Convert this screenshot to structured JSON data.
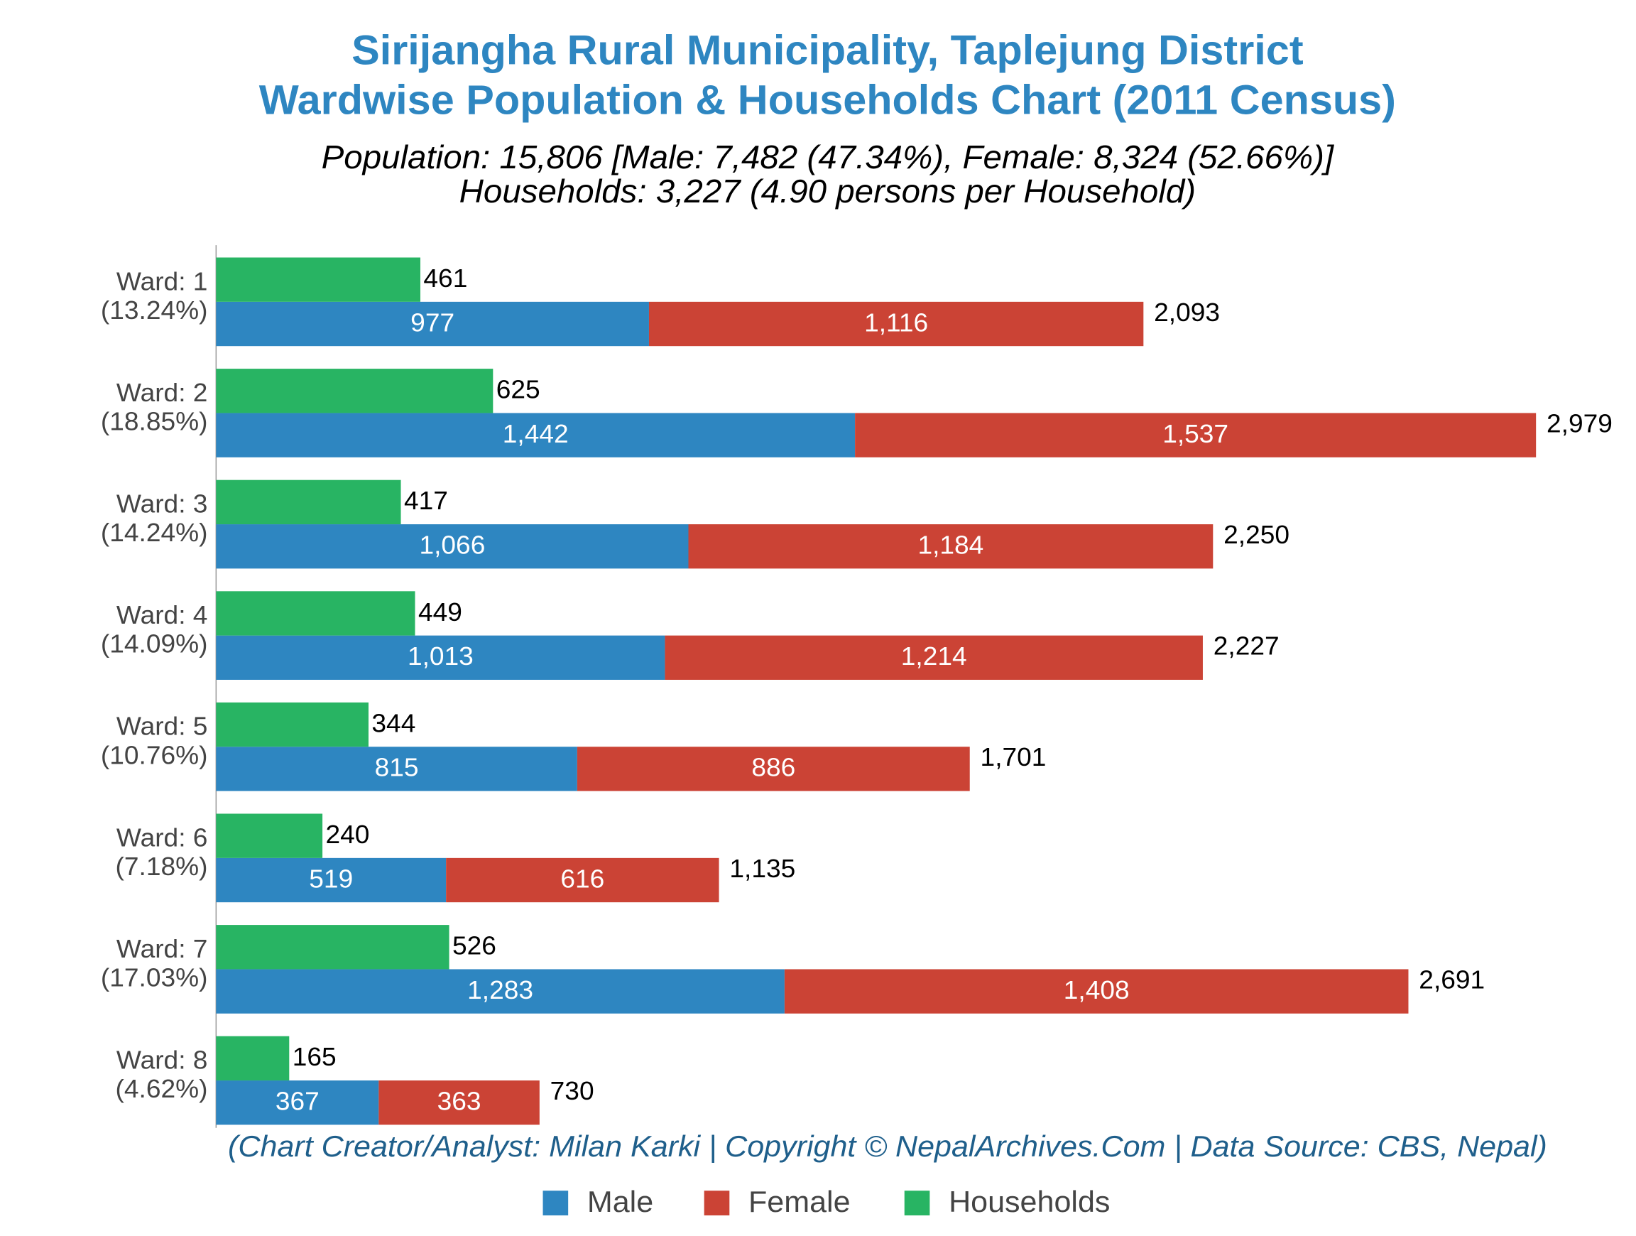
{
  "chart_data": {
    "type": "bar",
    "title": [
      "Sirijangha Rural Municipality, Taplejung District",
      "Wardwise Population & Households Chart (2011 Census)"
    ],
    "subtitle": [
      "Population: 15,806 [Male: 7,482 (47.34%), Female: 8,324 (52.66%)]",
      "Households: 3,227 (4.90 persons per Household)"
    ],
    "footer": "(Chart Creator/Analyst: Milan Karki | Copyright © NepalArchives.Com | Data Source: CBS, Nepal)",
    "categories": [
      "Ward: 1",
      "Ward: 2",
      "Ward: 3",
      "Ward: 4",
      "Ward: 5",
      "Ward: 6",
      "Ward: 7",
      "Ward: 8"
    ],
    "category_notes": [
      "(13.24%)",
      "(18.85%)",
      "(14.24%)",
      "(14.09%)",
      "(10.76%)",
      "(7.18%)",
      "(17.03%)",
      "(4.62%)"
    ],
    "series": [
      {
        "name": "Male",
        "color": "#2e86c1",
        "stack": "population",
        "values": [
          977,
          1442,
          1066,
          1013,
          815,
          519,
          1283,
          367
        ],
        "value_labels": [
          "977",
          "1,442",
          "1,066",
          "1,013",
          "815",
          "519",
          "1,283",
          "367"
        ]
      },
      {
        "name": "Female",
        "color": "#cb4335",
        "stack": "population",
        "values": [
          1116,
          1537,
          1184,
          1214,
          886,
          616,
          1408,
          363
        ],
        "value_labels": [
          "1,116",
          "1,537",
          "1,184",
          "1,214",
          "886",
          "616",
          "1,408",
          "363"
        ]
      },
      {
        "name": "Households",
        "color": "#28b463",
        "stack": "households",
        "values": [
          461,
          625,
          417,
          449,
          344,
          240,
          526,
          165
        ],
        "value_labels": [
          "461",
          "625",
          "417",
          "449",
          "344",
          "240",
          "526",
          "165"
        ]
      }
    ],
    "totals": [
      2093,
      2979,
      2250,
      2227,
      1701,
      1135,
      2691,
      730
    ],
    "total_labels": [
      "2,093",
      "2,979",
      "2,250",
      "2,227",
      "1,701",
      "1,135",
      "2,691",
      "730"
    ],
    "xlim": [
      0,
      3100
    ],
    "orientation": "horizontal",
    "legend": "bottom"
  }
}
